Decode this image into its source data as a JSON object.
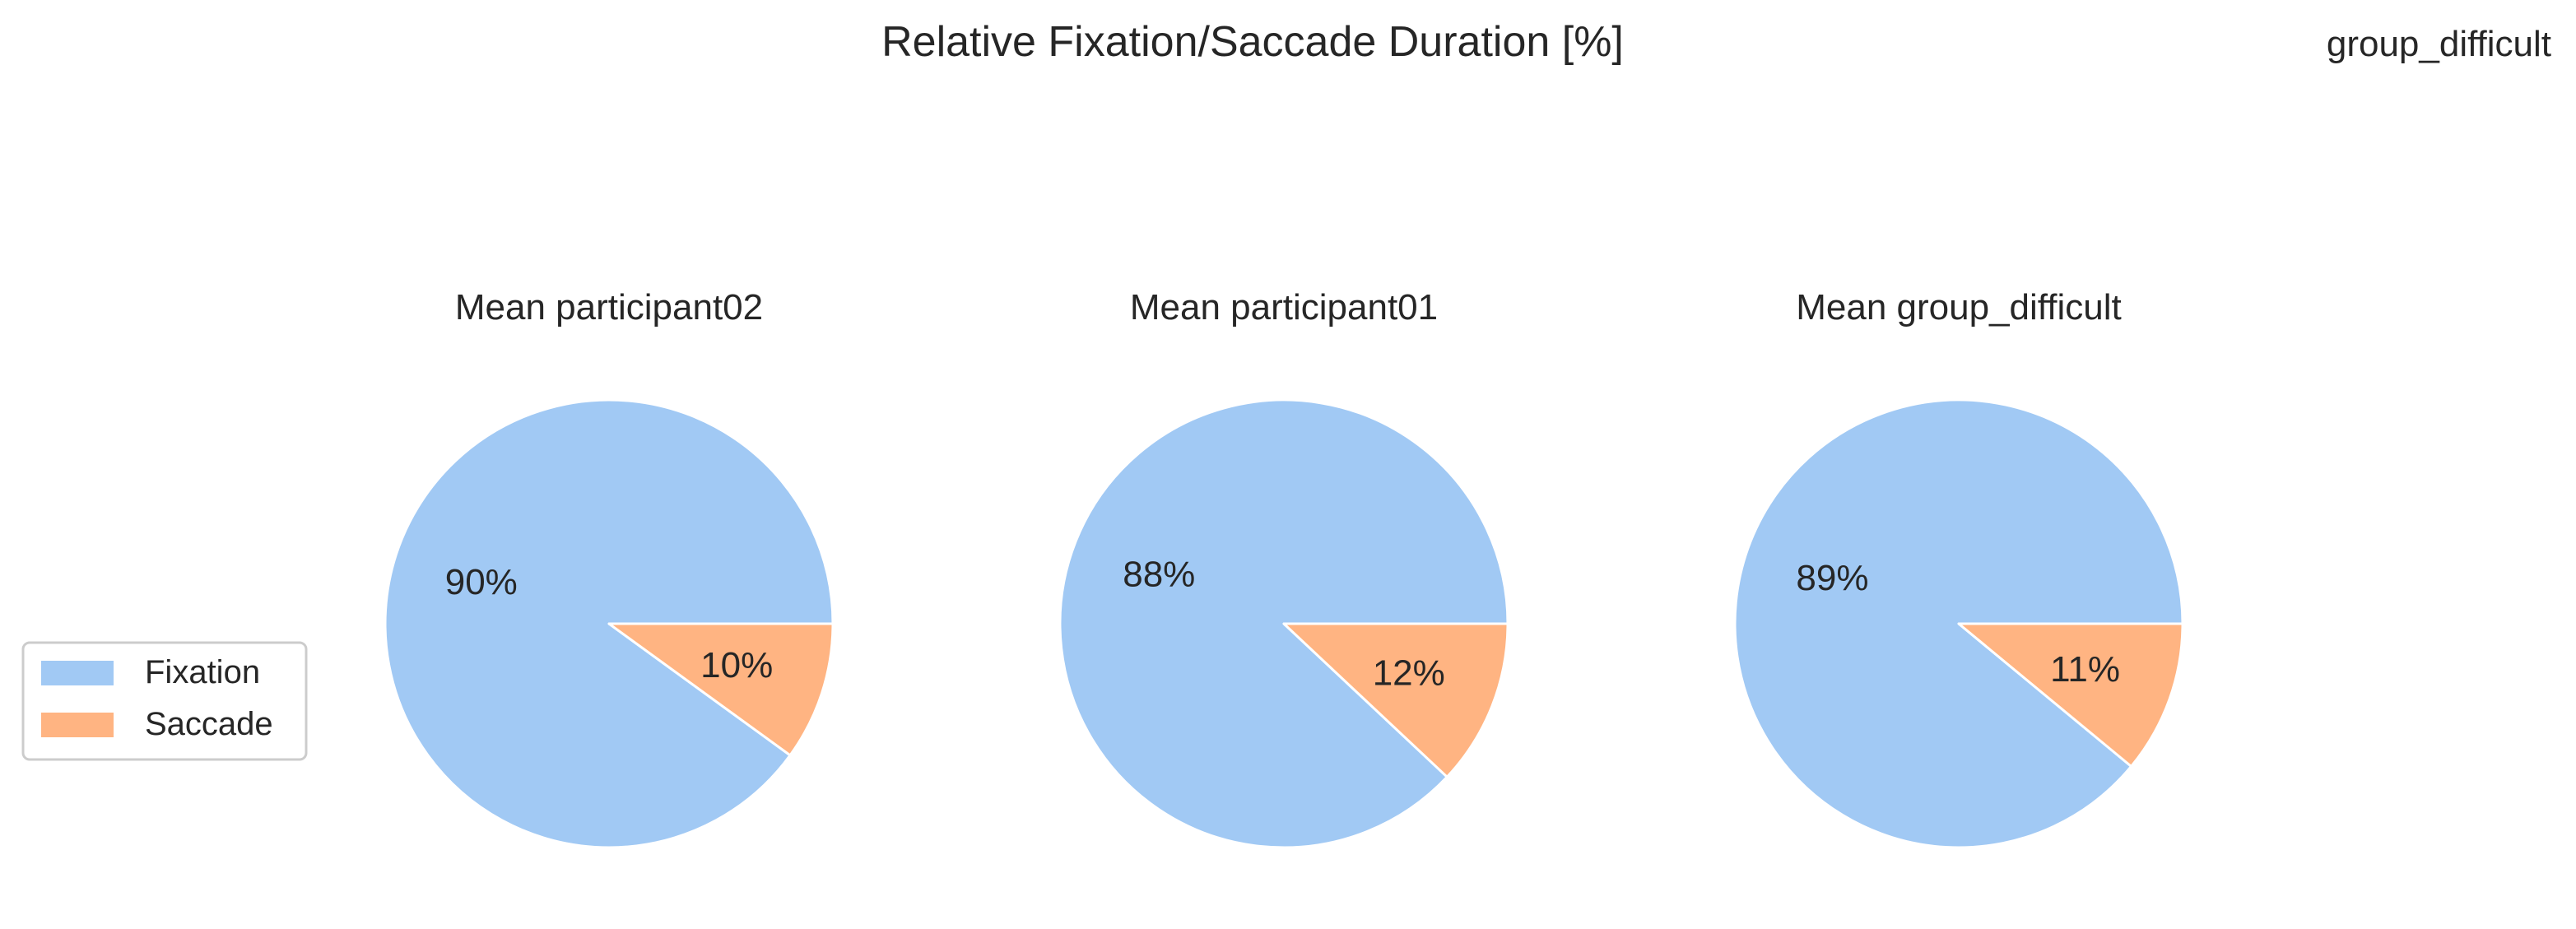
{
  "figure": {
    "suptitle": "Relative Fixation/Saccade Duration [%]",
    "corner_label": "group_difficult"
  },
  "colors": {
    "fixation": "#a1c9f4",
    "saccade": "#ffb482",
    "text": "#262626",
    "legend_border": "#cccccc"
  },
  "legend": {
    "entries": [
      "Fixation",
      "Saccade"
    ],
    "placement": "center-left"
  },
  "chart_data": [
    {
      "type": "pie",
      "title": "Mean participant02",
      "labels": [
        "Fixation",
        "Saccade"
      ],
      "values": [
        90,
        10
      ],
      "value_labels": [
        "90%",
        "10%"
      ]
    },
    {
      "type": "pie",
      "title": "Mean participant01",
      "labels": [
        "Fixation",
        "Saccade"
      ],
      "values": [
        88,
        12
      ],
      "value_labels": [
        "88%",
        "12%"
      ]
    },
    {
      "type": "pie",
      "title": "Mean group_difficult",
      "labels": [
        "Fixation",
        "Saccade"
      ],
      "values": [
        89,
        11
      ],
      "value_labels": [
        "89%",
        "11%"
      ]
    }
  ]
}
